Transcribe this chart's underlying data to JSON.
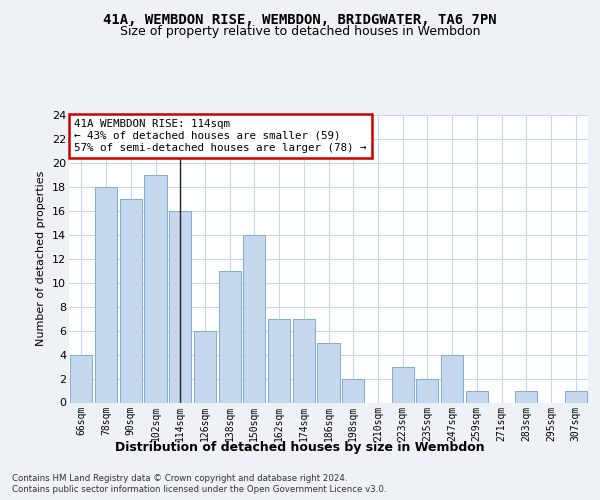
{
  "title1": "41A, WEMBDON RISE, WEMBDON, BRIDGWATER, TA6 7PN",
  "title2": "Size of property relative to detached houses in Wembdon",
  "xlabel": "Distribution of detached houses by size in Wembdon",
  "ylabel": "Number of detached properties",
  "categories": [
    "66sqm",
    "78sqm",
    "90sqm",
    "102sqm",
    "114sqm",
    "126sqm",
    "138sqm",
    "150sqm",
    "162sqm",
    "174sqm",
    "186sqm",
    "198sqm",
    "210sqm",
    "223sqm",
    "235sqm",
    "247sqm",
    "259sqm",
    "271sqm",
    "283sqm",
    "295sqm",
    "307sqm"
  ],
  "values": [
    4,
    18,
    17,
    19,
    16,
    6,
    11,
    14,
    7,
    7,
    5,
    2,
    0,
    3,
    2,
    4,
    1,
    0,
    1,
    0,
    1
  ],
  "bar_color": "#c5d8ed",
  "bar_edge_color": "#7bafd4",
  "highlight_index": 4,
  "highlight_line_color": "#222222",
  "annotation_text": "41A WEMBDON RISE: 114sqm\n← 43% of detached houses are smaller (59)\n57% of semi-detached houses are larger (78) →",
  "annotation_box_color": "#ffffff",
  "annotation_box_edge_color": "#cc0000",
  "ylim": [
    0,
    24
  ],
  "yticks": [
    0,
    2,
    4,
    6,
    8,
    10,
    12,
    14,
    16,
    18,
    20,
    22,
    24
  ],
  "footer": "Contains HM Land Registry data © Crown copyright and database right 2024.\nContains public sector information licensed under the Open Government Licence v3.0.",
  "bg_color": "#eef2f7",
  "plot_bg_color": "#ffffff",
  "grid_color": "#c8d8e8"
}
